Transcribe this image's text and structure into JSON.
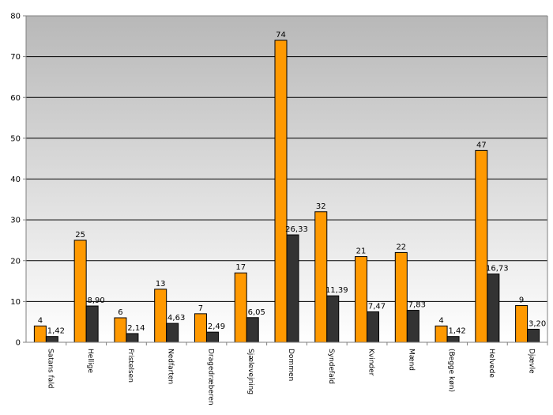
{
  "chart_data": {
    "type": "bar",
    "categories": [
      "Satans fald",
      "Hellige",
      "Fristelsen",
      "Nedfarten",
      "Dragedræberen",
      "Sjælevejning",
      "Dommen",
      "Syndefald",
      "Kvinder",
      "Mænd",
      "(Begge køn)",
      "Helvede",
      "Djævle"
    ],
    "series": [
      {
        "color": "#FF9900",
        "values": [
          4,
          25,
          6,
          13,
          7,
          17,
          74,
          32,
          21,
          22,
          4,
          47,
          9
        ],
        "labels": [
          "4",
          "25",
          "6",
          "13",
          "7",
          "17",
          "74",
          "32",
          "21",
          "22",
          "4",
          "47",
          "9"
        ]
      },
      {
        "color": "#333333",
        "values": [
          1.42,
          8.9,
          2.14,
          4.63,
          2.49,
          6.05,
          26.33,
          11.39,
          7.47,
          7.83,
          1.42,
          16.73,
          3.2
        ],
        "labels": [
          "1,42",
          "8,90",
          "2,14",
          "4,63",
          "2,49",
          "6,05",
          "26,33",
          "11,39",
          "7,47",
          "7,83",
          "1,42",
          "16,73",
          "3,20"
        ]
      }
    ],
    "yticks": [
      "0",
      "10",
      "20",
      "30",
      "40",
      "50",
      "60",
      "70",
      "80"
    ],
    "ylim": [
      0,
      80
    ],
    "title": "",
    "xlabel": "",
    "ylabel": "",
    "grid": true,
    "legend": "none",
    "plot_background": "gradient grey to white"
  }
}
